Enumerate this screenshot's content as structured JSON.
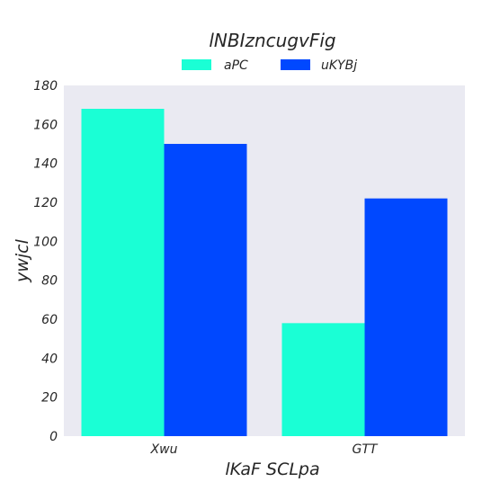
{
  "chart_data": {
    "type": "bar",
    "title": "lNBIzncugvFig",
    "xlabel": "lKaF SCLpa",
    "ylabel": "ywjcl",
    "categories": [
      "Xwu",
      "GTT"
    ],
    "series": [
      {
        "name": "aPC",
        "values": [
          168,
          58
        ],
        "color": "#1affd5"
      },
      {
        "name": "uKYBj",
        "values": [
          150,
          122
        ],
        "color": "#0048ff"
      }
    ],
    "ylim": [
      0,
      180
    ],
    "yticks": [
      0,
      20,
      40,
      60,
      80,
      100,
      120,
      140,
      160,
      180
    ],
    "grid": false,
    "legend_position": "top-center",
    "plot_background": "#eaeaf2"
  }
}
